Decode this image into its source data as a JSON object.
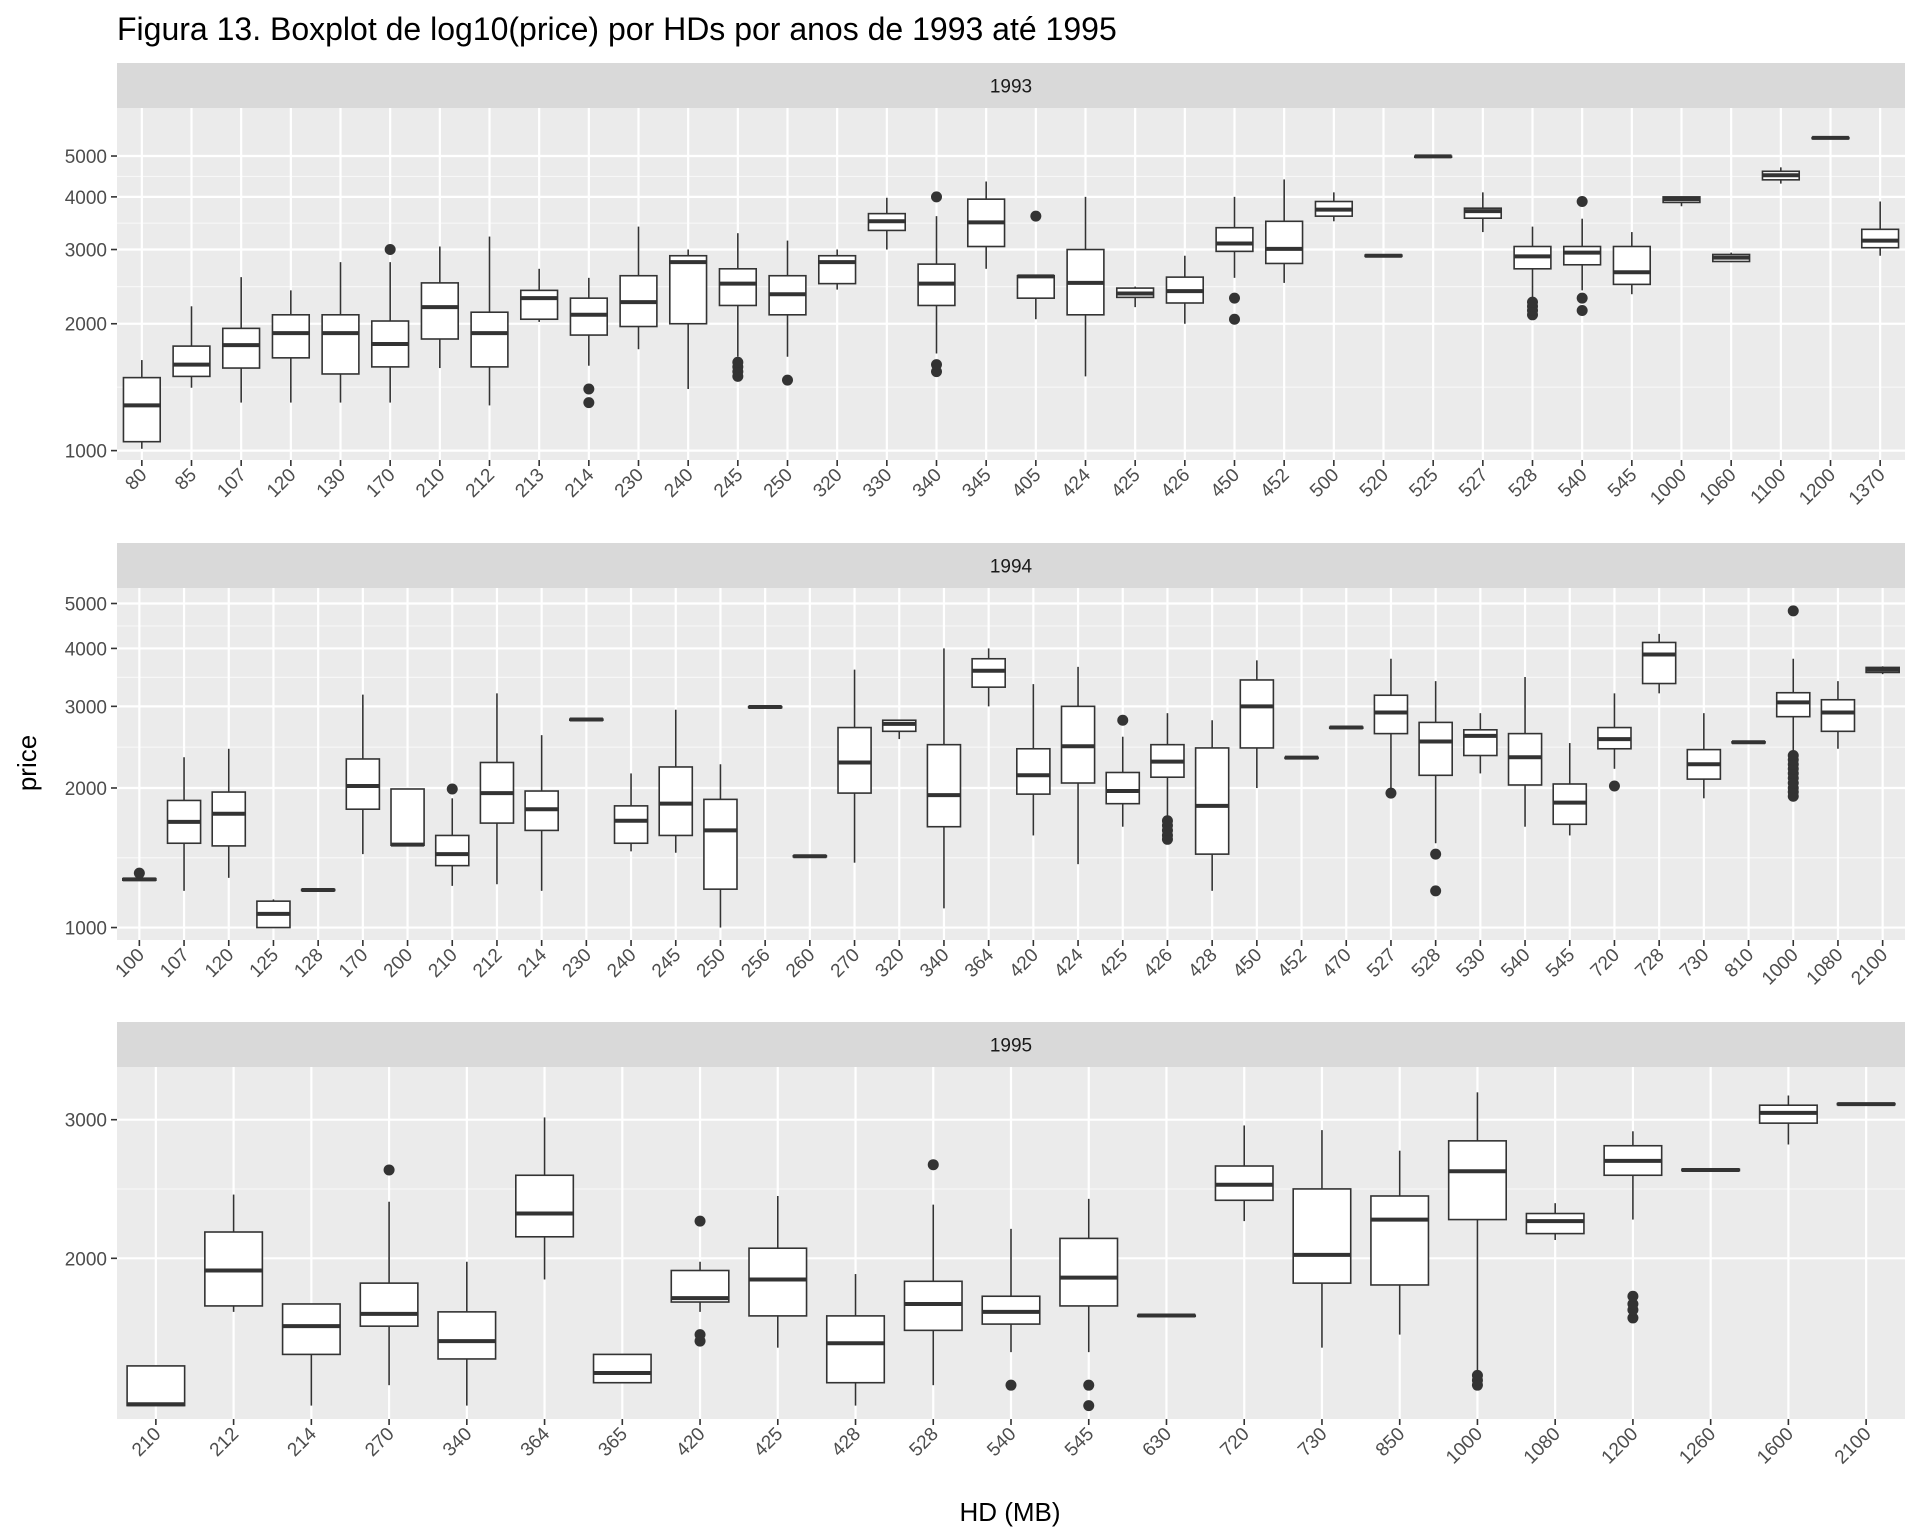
{
  "chart_data": {
    "type": "boxplot",
    "title": "Figura 13. Boxplot de log10(price) por HDs por anos de 1993 até 1995",
    "xlabel": "HD (MB)",
    "ylabel": "price",
    "y_scale": "log10",
    "grid": true,
    "panels": [
      {
        "strip": "1993",
        "ylim": [
          950,
          6500
        ],
        "y_ticks": [
          1000,
          2000,
          3000,
          4000,
          5000
        ],
        "categories": [
          "80",
          "85",
          "107",
          "120",
          "130",
          "170",
          "210",
          "212",
          "213",
          "214",
          "230",
          "240",
          "245",
          "250",
          "320",
          "330",
          "340",
          "345",
          "405",
          "424",
          "425",
          "426",
          "450",
          "452",
          "500",
          "520",
          "525",
          "527",
          "528",
          "540",
          "545",
          "1000",
          "1060",
          "1100",
          "1200",
          "1370"
        ],
        "boxes": [
          [
            1010,
            1050,
            1280,
            1490,
            1640,
            []
          ],
          [
            1410,
            1500,
            1600,
            1770,
            2200,
            []
          ],
          [
            1300,
            1570,
            1780,
            1950,
            2580,
            []
          ],
          [
            1300,
            1660,
            1900,
            2100,
            2400,
            []
          ],
          [
            1300,
            1520,
            1900,
            2100,
            2800,
            []
          ],
          [
            1300,
            1580,
            1790,
            2030,
            2800,
            [
              3000
            ]
          ],
          [
            1570,
            1840,
            2190,
            2500,
            3050,
            []
          ],
          [
            1280,
            1580,
            1900,
            2130,
            3220,
            []
          ],
          [
            2020,
            2050,
            2300,
            2400,
            2700,
            []
          ],
          [
            1590,
            1880,
            2100,
            2300,
            2570,
            [
              1300,
              1400
            ]
          ],
          [
            1740,
            1970,
            2250,
            2600,
            3400,
            []
          ],
          [
            1400,
            2000,
            2800,
            2900,
            3000,
            []
          ],
          [
            1670,
            2210,
            2490,
            2700,
            3280,
            [
              1500,
              1540,
              1580,
              1620
            ]
          ],
          [
            1670,
            2100,
            2350,
            2600,
            3150,
            [
              1470
            ]
          ],
          [
            2410,
            2490,
            2800,
            2900,
            3000,
            []
          ],
          [
            3000,
            3330,
            3500,
            3650,
            3980,
            []
          ],
          [
            1700,
            2210,
            2490,
            2770,
            3600,
            [
              1540,
              1600,
              4000
            ]
          ],
          [
            2700,
            3050,
            3480,
            3950,
            4350,
            []
          ],
          [
            2050,
            2300,
            2590,
            2600,
            2600,
            [
              3600
            ]
          ],
          [
            1500,
            2100,
            2500,
            3000,
            4000,
            []
          ],
          [
            2190,
            2310,
            2360,
            2430,
            2450,
            []
          ],
          [
            2000,
            2240,
            2390,
            2580,
            2900,
            []
          ],
          [
            2570,
            2970,
            3100,
            3380,
            4000,
            [
              2050,
              2300
            ]
          ],
          [
            2500,
            2780,
            3010,
            3500,
            4400,
            []
          ],
          [
            3500,
            3600,
            3730,
            3900,
            4100,
            []
          ],
          [
            2880,
            2890,
            2900,
            2910,
            2920,
            []
          ],
          [
            4980,
            4985,
            4990,
            4995,
            5000,
            []
          ],
          [
            3300,
            3560,
            3700,
            3760,
            4100,
            []
          ],
          [
            2280,
            2700,
            2890,
            3050,
            3400,
            [
              2100,
              2150,
              2200,
              2250
            ]
          ],
          [
            2400,
            2760,
            2950,
            3050,
            3550,
            [
              2150,
              2300,
              3900
            ]
          ],
          [
            2350,
            2480,
            2650,
            3050,
            3300,
            []
          ],
          [
            3800,
            3880,
            3950,
            4000,
            4000,
            []
          ],
          [
            2800,
            2810,
            2870,
            2920,
            2950,
            []
          ],
          [
            4300,
            4390,
            4500,
            4600,
            4700,
            []
          ],
          [
            5500,
            5510,
            5520,
            5530,
            5550,
            []
          ],
          [
            2900,
            3030,
            3150,
            3350,
            3900,
            []
          ]
        ]
      },
      {
        "strip": "1994",
        "ylim": [
          940,
          5400
        ],
        "y_ticks": [
          1000,
          2000,
          3000,
          4000,
          5000
        ],
        "categories": [
          "100",
          "107",
          "120",
          "125",
          "128",
          "170",
          "200",
          "210",
          "212",
          "214",
          "230",
          "240",
          "245",
          "250",
          "256",
          "260",
          "270",
          "320",
          "340",
          "364",
          "420",
          "424",
          "425",
          "426",
          "428",
          "450",
          "452",
          "470",
          "527",
          "528",
          "530",
          "540",
          "545",
          "720",
          "728",
          "730",
          "810",
          "1000",
          "1080",
          "2100"
        ],
        "boxes": [
          [
            1260,
            1265,
            1270,
            1275,
            1280,
            [
              1310
            ]
          ],
          [
            1200,
            1520,
            1690,
            1880,
            2330,
            []
          ],
          [
            1280,
            1500,
            1760,
            1960,
            2430,
            []
          ],
          [
            1000,
            1000,
            1070,
            1140,
            1150,
            []
          ],
          [
            1200,
            1202,
            1205,
            1208,
            1210,
            []
          ],
          [
            1440,
            1800,
            2020,
            2310,
            3180,
            []
          ],
          [
            1500,
            1505,
            1510,
            1990,
            1990,
            []
          ],
          [
            1230,
            1360,
            1440,
            1580,
            1900,
            [
              1990
            ]
          ],
          [
            1240,
            1680,
            1950,
            2270,
            3200,
            []
          ],
          [
            1200,
            1620,
            1800,
            1970,
            2600,
            []
          ],
          [
            2800,
            2805,
            2810,
            2815,
            2820,
            []
          ],
          [
            1460,
            1520,
            1700,
            1830,
            2150,
            []
          ],
          [
            1450,
            1580,
            1850,
            2220,
            2950,
            []
          ],
          [
            1000,
            1210,
            1620,
            1890,
            2250,
            []
          ],
          [
            2980,
            2985,
            2990,
            2995,
            3000,
            []
          ],
          [
            1420,
            1423,
            1425,
            1428,
            1430,
            []
          ],
          [
            1380,
            1950,
            2270,
            2700,
            3600,
            []
          ],
          [
            2550,
            2650,
            2750,
            2800,
            2800,
            []
          ],
          [
            1100,
            1650,
            1930,
            2480,
            4000,
            []
          ],
          [
            3000,
            3300,
            3580,
            3800,
            4000,
            []
          ],
          [
            1580,
            1940,
            2130,
            2430,
            3350,
            []
          ],
          [
            1370,
            2050,
            2460,
            3000,
            3650,
            []
          ],
          [
            1650,
            1850,
            1970,
            2160,
            2580,
            [
              2800
            ]
          ],
          [
            1680,
            2110,
            2280,
            2480,
            2900,
            [
              1550,
              1580,
              1620,
              1660,
              1700
            ]
          ],
          [
            1200,
            1440,
            1830,
            2440,
            2800,
            []
          ],
          [
            2000,
            2440,
            3000,
            3420,
            3770,
            []
          ],
          [
            2320,
            2323,
            2325,
            2328,
            2330,
            []
          ],
          [
            2690,
            2695,
            2700,
            2705,
            2710,
            []
          ],
          [
            1950,
            2620,
            2910,
            3170,
            3800,
            [
              1950
            ]
          ],
          [
            1520,
            2130,
            2520,
            2770,
            3400,
            [
              1200,
              1440
            ]
          ],
          [
            2150,
            2350,
            2590,
            2670,
            2900,
            []
          ],
          [
            1650,
            2030,
            2330,
            2620,
            3470,
            []
          ],
          [
            1580,
            1670,
            1860,
            2040,
            2500,
            []
          ],
          [
            2200,
            2430,
            2550,
            2700,
            3200,
            [
              2020
            ]
          ],
          [
            3200,
            3360,
            3880,
            4120,
            4300,
            []
          ],
          [
            1900,
            2090,
            2250,
            2420,
            2900,
            []
          ],
          [
            2500,
            2505,
            2510,
            2515,
            2520,
            []
          ],
          [
            2400,
            2850,
            3060,
            3210,
            3800,
            [
              1920,
              1960,
              2000,
              2050,
              2100,
              2150,
              2200,
              2250,
              2300,
              2350,
              4820
            ]
          ],
          [
            2430,
            2650,
            2910,
            3100,
            3400,
            []
          ],
          [
            3520,
            3550,
            3600,
            3640,
            3660,
            []
          ]
        ]
      },
      {
        "strip": "1995",
        "ylim": [
          1250,
          3500
        ],
        "y_ticks": [
          2000,
          3000
        ],
        "categories": [
          "210",
          "212",
          "214",
          "270",
          "340",
          "364",
          "365",
          "420",
          "425",
          "428",
          "528",
          "540",
          "545",
          "630",
          "720",
          "730",
          "850",
          "1000",
          "1080",
          "1200",
          "1260",
          "1600",
          "2100"
        ],
        "boxes": [
          [
            1300,
            1300,
            1305,
            1460,
            1460,
            []
          ],
          [
            1710,
            1740,
            1930,
            2160,
            2410,
            []
          ],
          [
            1300,
            1510,
            1640,
            1750,
            1750,
            []
          ],
          [
            1380,
            1640,
            1700,
            1860,
            2360,
            [
              2590
            ]
          ],
          [
            1300,
            1490,
            1570,
            1710,
            1980,
            []
          ],
          [
            1880,
            2130,
            2280,
            2550,
            3020,
            []
          ],
          [
            1390,
            1390,
            1430,
            1510,
            1510,
            []
          ],
          [
            1710,
            1760,
            1780,
            1930,
            1980,
            [
              1570,
              1600,
              2230
            ]
          ],
          [
            1540,
            1690,
            1880,
            2060,
            2400,
            []
          ],
          [
            1300,
            1390,
            1560,
            1690,
            1910,
            []
          ],
          [
            1380,
            1620,
            1750,
            1870,
            2340,
            [
              2630
            ]
          ],
          [
            1520,
            1650,
            1710,
            1790,
            2180,
            [
              1380
            ]
          ],
          [
            1520,
            1740,
            1890,
            2120,
            2380,
            [
              1300,
              1380
            ]
          ],
          [
            1690,
            1691,
            1692,
            1693,
            1694,
            []
          ],
          [
            2230,
            2370,
            2480,
            2620,
            2950,
            []
          ],
          [
            1540,
            1860,
            2020,
            2450,
            2910,
            []
          ],
          [
            1600,
            1850,
            2240,
            2400,
            2740,
            []
          ],
          [
            1390,
            2240,
            2580,
            2820,
            3250,
            [
              1380,
              1400,
              1420
            ]
          ],
          [
            2110,
            2150,
            2230,
            2280,
            2350,
            []
          ],
          [
            2240,
            2550,
            2660,
            2780,
            2900,
            [
              1680,
              1720,
              1750,
              1790
            ]
          ],
          [
            2580,
            2585,
            2590,
            2595,
            2600,
            []
          ],
          [
            2790,
            2970,
            3060,
            3130,
            3220,
            []
          ],
          [
            3130,
            3135,
            3140,
            3145,
            3150,
            []
          ]
        ]
      }
    ]
  }
}
